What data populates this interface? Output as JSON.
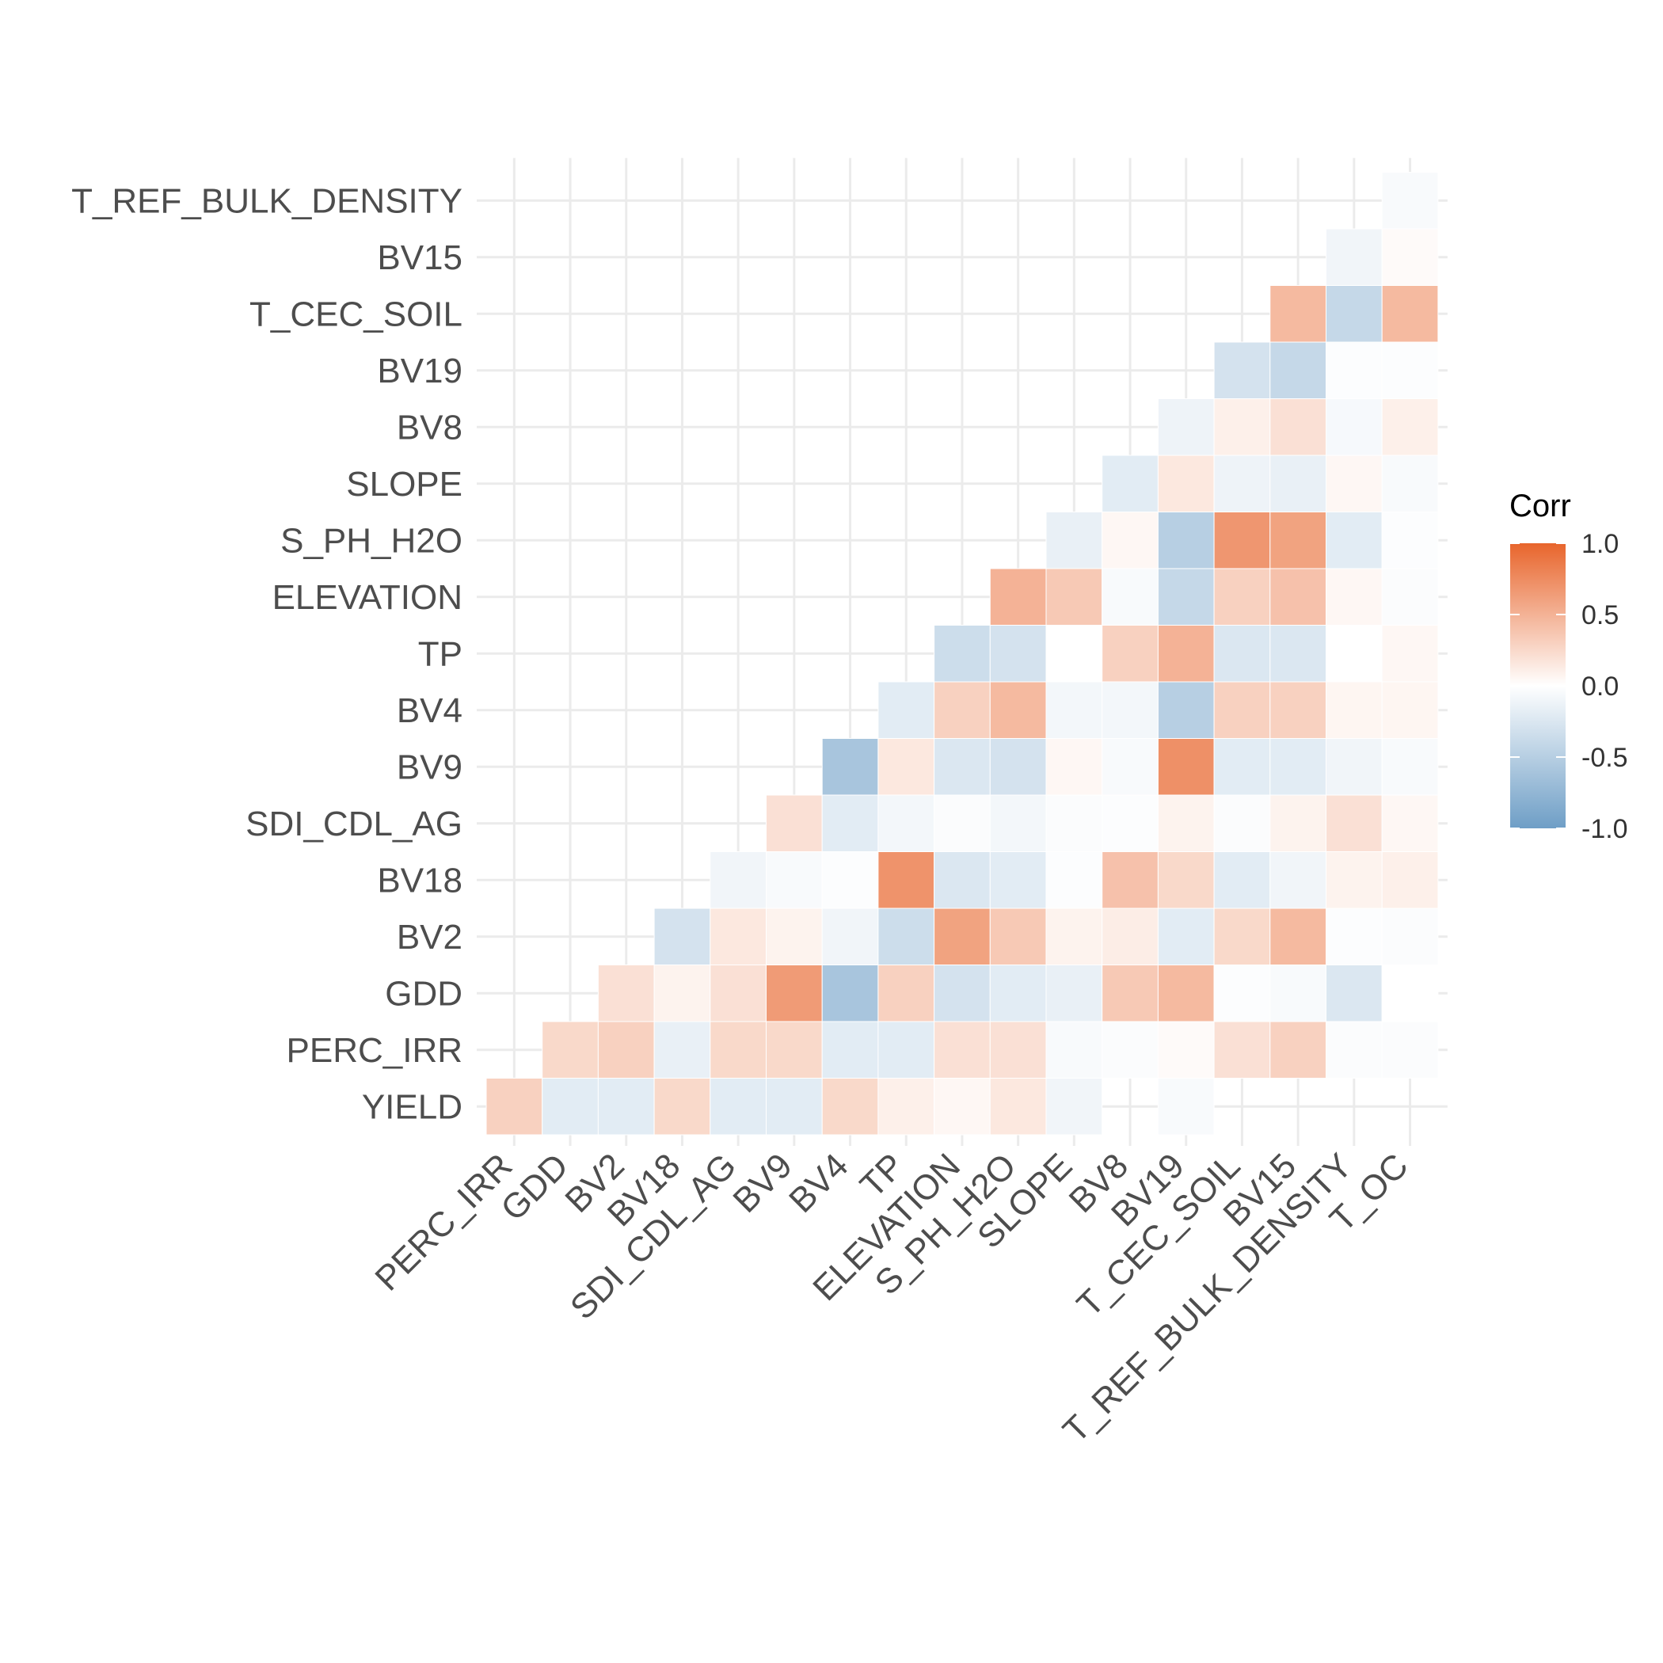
{
  "chart_data": {
    "type": "heatmap",
    "title": "",
    "xlabel": "",
    "ylabel": "",
    "x_categories": [
      "PERC_IRR",
      "GDD",
      "BV2",
      "BV18",
      "SDI_CDL_AG",
      "BV9",
      "BV4",
      "TP",
      "ELEVATION",
      "S_PH_H2O",
      "SLOPE",
      "BV8",
      "BV19",
      "T_CEC_SOIL",
      "BV15",
      "T_REF_BULK_DENSITY",
      "T_OC"
    ],
    "y_categories": [
      "YIELD",
      "PERC_IRR",
      "GDD",
      "BV2",
      "BV18",
      "SDI_CDL_AG",
      "BV9",
      "BV4",
      "TP",
      "ELEVATION",
      "S_PH_H2O",
      "SLOPE",
      "BV8",
      "BV19",
      "T_CEC_SOIL",
      "BV15",
      "T_REF_BULK_DENSITY"
    ],
    "values": [
      [
        0.3,
        -0.2,
        -0.2,
        0.25,
        -0.2,
        -0.2,
        0.25,
        0.1,
        0.05,
        0.15,
        -0.1,
        null,
        -0.05,
        null,
        null,
        null,
        null
      ],
      [
        null,
        0.25,
        0.3,
        -0.15,
        0.25,
        0.25,
        -0.2,
        -0.2,
        0.2,
        0.2,
        -0.05,
        -0.03,
        0.03,
        0.2,
        0.3,
        -0.03,
        -0.03
      ],
      [
        null,
        null,
        0.2,
        0.08,
        0.2,
        0.65,
        -0.6,
        0.3,
        -0.3,
        -0.2,
        -0.15,
        0.35,
        0.45,
        -0.02,
        -0.05,
        -0.25,
        0.0
      ],
      [
        null,
        null,
        null,
        -0.3,
        0.15,
        0.08,
        -0.1,
        -0.35,
        0.6,
        0.35,
        0.08,
        0.12,
        -0.2,
        0.25,
        0.45,
        -0.02,
        -0.03
      ],
      [
        null,
        null,
        null,
        null,
        -0.1,
        -0.05,
        -0.02,
        0.7,
        -0.25,
        -0.2,
        -0.02,
        0.4,
        0.25,
        -0.2,
        -0.1,
        0.08,
        0.1
      ],
      [
        null,
        null,
        null,
        null,
        null,
        0.2,
        -0.2,
        -0.08,
        -0.03,
        -0.08,
        -0.03,
        -0.02,
        0.08,
        -0.03,
        0.08,
        0.2,
        0.05
      ],
      [
        null,
        null,
        null,
        null,
        null,
        null,
        -0.6,
        0.15,
        -0.25,
        -0.3,
        0.05,
        -0.05,
        0.72,
        -0.2,
        -0.2,
        -0.1,
        -0.05
      ],
      [
        null,
        null,
        null,
        null,
        null,
        null,
        null,
        -0.2,
        0.3,
        0.45,
        -0.08,
        -0.08,
        -0.5,
        0.3,
        0.3,
        0.06,
        0.06
      ],
      [
        null,
        null,
        null,
        null,
        null,
        null,
        null,
        null,
        -0.35,
        -0.3,
        0.0,
        0.3,
        0.5,
        -0.25,
        -0.25,
        0.0,
        0.05
      ],
      [
        null,
        null,
        null,
        null,
        null,
        null,
        null,
        null,
        null,
        0.5,
        0.35,
        -0.05,
        -0.4,
        0.3,
        0.4,
        0.05,
        -0.03
      ],
      [
        null,
        null,
        null,
        null,
        null,
        null,
        null,
        null,
        null,
        null,
        -0.15,
        0.05,
        -0.5,
        0.68,
        0.6,
        -0.2,
        -0.02
      ],
      [
        null,
        null,
        null,
        null,
        null,
        null,
        null,
        null,
        null,
        null,
        null,
        -0.2,
        0.15,
        -0.12,
        -0.15,
        0.05,
        -0.05
      ],
      [
        null,
        null,
        null,
        null,
        null,
        null,
        null,
        null,
        null,
        null,
        null,
        null,
        -0.12,
        0.1,
        0.2,
        -0.06,
        0.1
      ],
      [
        null,
        null,
        null,
        null,
        null,
        null,
        null,
        null,
        null,
        null,
        null,
        null,
        null,
        -0.3,
        -0.4,
        -0.02,
        -0.02
      ],
      [
        null,
        null,
        null,
        null,
        null,
        null,
        null,
        null,
        null,
        null,
        null,
        null,
        null,
        null,
        0.45,
        -0.4,
        0.45
      ],
      [
        null,
        null,
        null,
        null,
        null,
        null,
        null,
        null,
        null,
        null,
        null,
        null,
        null,
        null,
        null,
        -0.1,
        0.03
      ],
      [
        null,
        null,
        null,
        null,
        null,
        null,
        null,
        null,
        null,
        null,
        null,
        null,
        null,
        null,
        null,
        null,
        -0.05
      ]
    ],
    "color_scale": {
      "low": "#6e9ec6",
      "mid": "#ffffff",
      "high": "#e8652c",
      "limits": [
        -1,
        1
      ]
    },
    "legend": {
      "title": "Corr",
      "ticks": [
        "1.0",
        "0.5",
        "0.0",
        "-0.5",
        "-1.0"
      ],
      "position": "right"
    },
    "grid": true
  }
}
